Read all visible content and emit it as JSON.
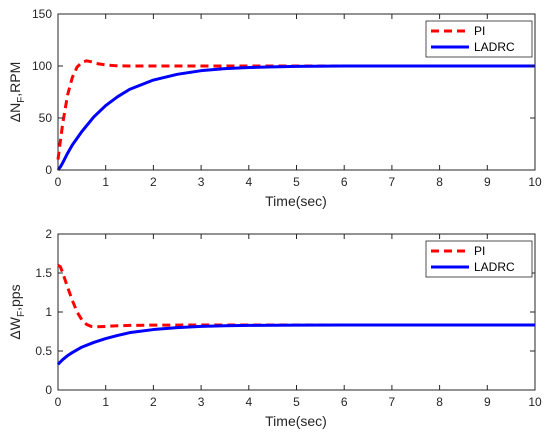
{
  "chart_data": [
    {
      "type": "line",
      "xlabel": "Time(sec)",
      "ylabel_main": "ΔN",
      "ylabel_sub": "F",
      "ylabel_rest": ",RPM",
      "xlim": [
        0,
        10
      ],
      "ylim": [
        0,
        150
      ],
      "xticks": [
        "0",
        "1",
        "2",
        "3",
        "4",
        "5",
        "6",
        "7",
        "8",
        "9",
        "10"
      ],
      "yticks": [
        "0",
        "50",
        "100",
        "150"
      ],
      "ytick_values": [
        0,
        50,
        100,
        150
      ],
      "legend_position": "top-right",
      "grid": false,
      "series": [
        {
          "name": "PI",
          "color": "#ff0000",
          "style": "dashed",
          "x": [
            0,
            0.05,
            0.1,
            0.2,
            0.3,
            0.4,
            0.5,
            0.6,
            0.7,
            0.8,
            1.0,
            1.2,
            1.5,
            2.0,
            3.0,
            4.0,
            5.0,
            6.0,
            7.0,
            8.0,
            9.0,
            10.0
          ],
          "values": [
            10,
            28,
            45,
            72,
            89,
            99,
            103.5,
            105,
            104,
            102.5,
            101,
            100.3,
            100,
            100,
            100,
            100,
            100,
            100,
            100,
            100,
            100,
            100
          ]
        },
        {
          "name": "LADRC",
          "color": "#0000ff",
          "style": "solid",
          "x": [
            0,
            0.05,
            0.1,
            0.2,
            0.3,
            0.5,
            0.75,
            1.0,
            1.25,
            1.5,
            2.0,
            2.5,
            3.0,
            3.5,
            4.0,
            4.5,
            5.0,
            6.0,
            7.0,
            8.0,
            9.0,
            10.0
          ],
          "values": [
            0,
            3,
            7,
            16,
            24,
            37,
            51,
            62,
            70.5,
            77.5,
            86.5,
            92,
            95.5,
            97.5,
            98.5,
            99.2,
            99.6,
            100,
            100,
            100,
            100,
            100
          ]
        }
      ]
    },
    {
      "type": "line",
      "xlabel": "Time(sec)",
      "ylabel_main": "ΔW",
      "ylabel_sub": "F",
      "ylabel_rest": ",pps",
      "xlim": [
        0,
        10
      ],
      "ylim": [
        0,
        2
      ],
      "xticks": [
        "0",
        "1",
        "2",
        "3",
        "4",
        "5",
        "6",
        "7",
        "8",
        "9",
        "10"
      ],
      "yticks": [
        "0",
        "0.5",
        "1",
        "1.5",
        "2"
      ],
      "ytick_values": [
        0,
        0.5,
        1,
        1.5,
        2
      ],
      "legend_position": "top-right",
      "grid": false,
      "series": [
        {
          "name": "PI",
          "color": "#ff0000",
          "style": "dashed",
          "x": [
            0,
            0.05,
            0.1,
            0.2,
            0.3,
            0.4,
            0.5,
            0.6,
            0.7,
            0.8,
            0.9,
            1.0,
            1.2,
            1.5,
            2.0,
            3.0,
            4.0,
            5.0,
            6.0,
            7.0,
            8.0,
            9.0,
            10.0
          ],
          "values": [
            1.6,
            1.58,
            1.5,
            1.32,
            1.15,
            1.0,
            0.9,
            0.84,
            0.815,
            0.81,
            0.812,
            0.815,
            0.822,
            0.828,
            0.832,
            0.833,
            0.833,
            0.833,
            0.833,
            0.833,
            0.833,
            0.833,
            0.833
          ]
        },
        {
          "name": "LADRC",
          "color": "#0000ff",
          "style": "solid",
          "x": [
            0,
            0.05,
            0.1,
            0.2,
            0.3,
            0.5,
            0.75,
            1.0,
            1.25,
            1.5,
            2.0,
            2.5,
            3.0,
            3.5,
            4.0,
            5.0,
            6.0,
            7.0,
            8.0,
            9.0,
            10.0
          ],
          "values": [
            0.33,
            0.36,
            0.39,
            0.44,
            0.48,
            0.55,
            0.61,
            0.66,
            0.7,
            0.735,
            0.775,
            0.8,
            0.815,
            0.823,
            0.828,
            0.832,
            0.833,
            0.833,
            0.833,
            0.833,
            0.833
          ]
        }
      ]
    }
  ]
}
